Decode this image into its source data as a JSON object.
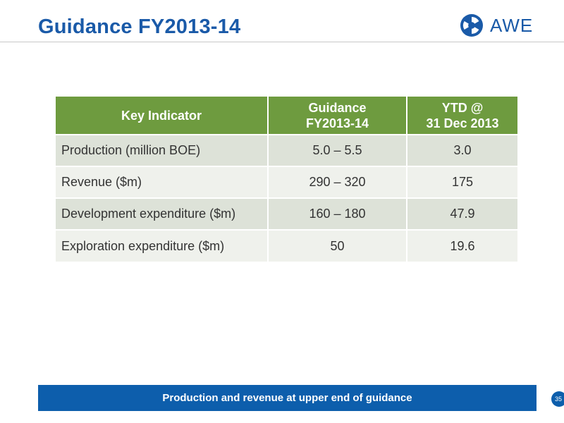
{
  "slide": {
    "title": "Guidance FY2013-14",
    "page_number": "35"
  },
  "logo": {
    "text": "AWE",
    "icon": "awe-logo-mark",
    "color": "#1a5aa8"
  },
  "table": {
    "headers": [
      [
        "Key Indicator"
      ],
      [
        "Guidance",
        "FY2013-14"
      ],
      [
        "YTD @",
        "31 Dec 2013"
      ]
    ],
    "rows": [
      [
        "Production (million BOE)",
        "5.0 – 5.5",
        "3.0"
      ],
      [
        "Revenue ($m)",
        "290 – 320",
        "175"
      ],
      [
        "Development expenditure ($m)",
        "160 – 180",
        "47.9"
      ],
      [
        "Exploration expenditure ($m)",
        "50",
        "19.6"
      ]
    ],
    "header_color": "#6e9b3f",
    "row_colors": [
      "#dde2d8",
      "#eff1ec"
    ]
  },
  "banner": {
    "text": "Production and revenue at upper end of guidance",
    "color": "#0d5eac"
  }
}
